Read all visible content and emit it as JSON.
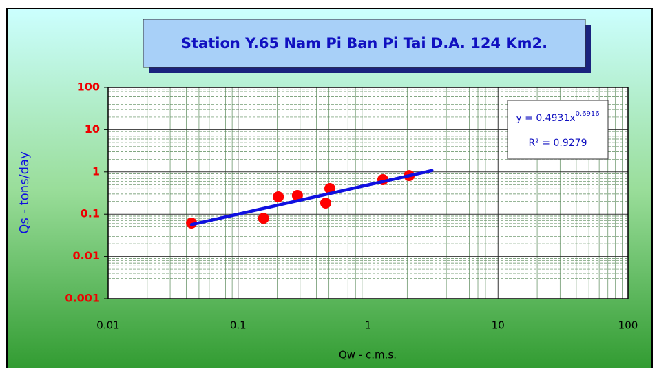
{
  "chart_data": {
    "type": "scatter",
    "title": "Station Y.65 Nam Pi  Ban Pi Tai D.A. 124 Km2.",
    "x_label": "Qw - c.m.s.",
    "y_label": "Qs - tons/day",
    "log_x": true,
    "log_y": true,
    "grid": true,
    "minor_grid": true,
    "xlim": [
      0.01,
      100
    ],
    "ylim": [
      0.001,
      100
    ],
    "xticks": [
      0.01,
      0.1,
      1,
      10,
      100
    ],
    "yticks": [
      0.001,
      0.01,
      0.1,
      1,
      10,
      100
    ],
    "series": [
      {
        "color": "#ff0000",
        "x": [
          0.0438,
          0.157,
          0.204,
          0.286,
          0.472,
          0.508,
          1.3,
          2.07
        ],
        "values": [
          0.062,
          0.08,
          0.257,
          0.277,
          0.184,
          0.404,
          0.658,
          0.82
        ]
      }
    ],
    "trendline": {
      "color": "#1010e0",
      "x": [
        0.0438,
        3.1
      ],
      "values": [
        0.0567,
        1.078
      ]
    },
    "equation": "y = 0.4931x",
    "equation_exponent": "0.6916",
    "r_squared": "R² = 0.9279"
  }
}
